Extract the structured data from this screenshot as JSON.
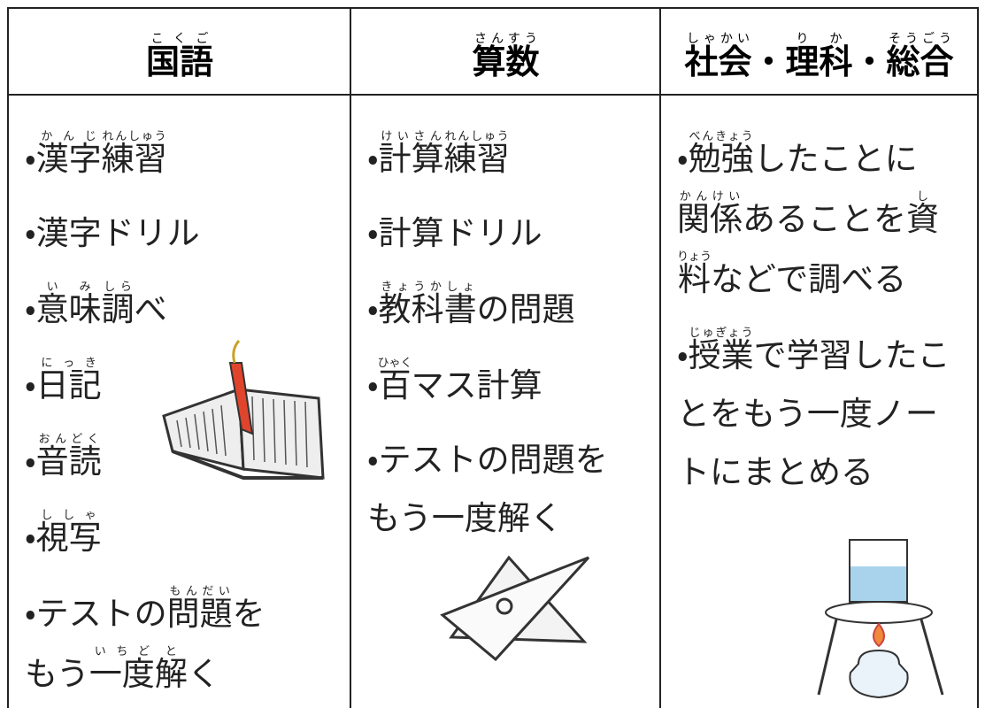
{
  "columns": [
    {
      "header": [
        {
          "base": "国語",
          "ruby": "こくご"
        }
      ],
      "items": [
        [
          [
            "・",
            {
              "base": "漢字",
              "ruby": "かんじ"
            },
            {
              "base": "練習",
              "ruby": "れんしゅう"
            }
          ]
        ],
        [
          [
            "・",
            "漢字ドリル"
          ]
        ],
        [
          [
            "・",
            {
              "base": "意味",
              "ruby": "いみ"
            },
            {
              "base": "調",
              "ruby": "しら"
            },
            "べ"
          ]
        ],
        [
          [
            "・",
            {
              "base": "日記",
              "ruby": "にっき"
            }
          ]
        ],
        [
          [
            "・",
            {
              "base": "音読",
              "ruby": "おんどく"
            }
          ]
        ],
        [
          [
            "・",
            {
              "base": "視写",
              "ruby": "ししゃ"
            }
          ]
        ],
        [
          [
            "・",
            "テストの",
            {
              "base": "問題",
              "ruby": "もんだい"
            },
            "を"
          ],
          [
            "もう",
            {
              "base": "一度",
              "ruby": "いちど"
            },
            {
              "base": "解",
              "ruby": "と"
            },
            "く"
          ]
        ]
      ]
    },
    {
      "header": [
        {
          "base": "算数",
          "ruby": "さんすう"
        }
      ],
      "items": [
        [
          [
            "・",
            {
              "base": "計算",
              "ruby": "けいさん"
            },
            {
              "base": "練習",
              "ruby": "れんしゅう"
            }
          ]
        ],
        [
          [
            "・",
            "計算ドリル"
          ]
        ],
        [
          [
            "・",
            {
              "base": "教科書",
              "ruby": "きょうかしょ"
            },
            "の問題"
          ]
        ],
        [
          [
            "・",
            {
              "base": "百",
              "ruby": "ひゃく"
            },
            "マス計算"
          ]
        ],
        [
          [
            "・",
            "テストの問題を"
          ],
          [
            "もう一度解く"
          ]
        ]
      ]
    },
    {
      "header": [
        {
          "base": "社会",
          "ruby": "しゃかい"
        },
        "・",
        {
          "base": "理科",
          "ruby": "りか"
        },
        "・",
        {
          "base": "総合",
          "ruby": "そうごう"
        }
      ],
      "items": [
        [
          [
            "・",
            {
              "base": "勉強",
              "ruby": "べんきょう"
            },
            "したことに"
          ],
          [
            {
              "base": "関係",
              "ruby": "かんけい"
            },
            "あることを",
            {
              "base": "資",
              "ruby": "し"
            }
          ],
          [
            {
              "base": "料",
              "ruby": "りょう"
            },
            "などで調べる"
          ]
        ],
        [
          [
            "・",
            {
              "base": "授業",
              "ruby": "じゅぎょう"
            },
            "で学習したこ"
          ],
          [
            "とをもう一度ノー"
          ],
          [
            "トにまとめる"
          ]
        ]
      ]
    }
  ]
}
